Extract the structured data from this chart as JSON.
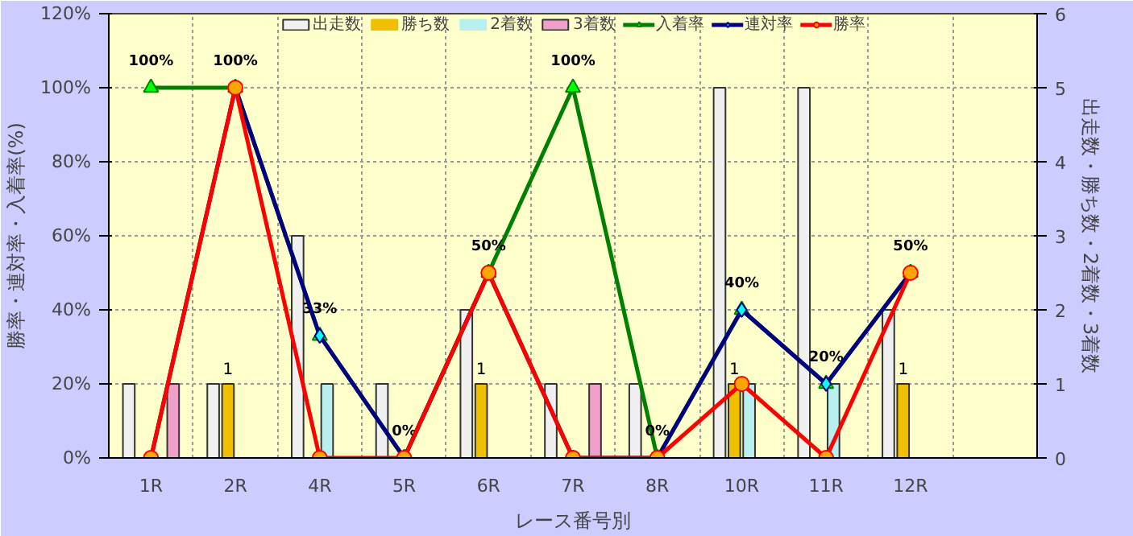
{
  "chart_data": {
    "type": "bar",
    "xlabel": "レース番号別",
    "ylabel": "勝率・連対率・入着率(%)",
    "y2label": "出走数・勝ち数・2着数・3着数",
    "categories": [
      "1R",
      "2R",
      "4R",
      "5R",
      "6R",
      "7R",
      "8R",
      "10R",
      "11R",
      "12R",
      null
    ],
    "series": [
      {
        "name": "出走数",
        "axis": "y2",
        "color": "#f0f0f0",
        "values": [
          1,
          1,
          3,
          1,
          2,
          1,
          1,
          5,
          5,
          2,
          null
        ]
      },
      {
        "name": "勝ち数",
        "axis": "y2",
        "color": "#f0c000",
        "values": [
          0,
          1,
          0,
          0,
          1,
          0,
          0,
          1,
          0,
          1,
          null
        ],
        "value_labels": [
          null,
          "1",
          null,
          null,
          "1",
          null,
          null,
          "1",
          null,
          "1",
          null
        ]
      },
      {
        "name": "2着数",
        "axis": "y2",
        "color": "#b8f0f0",
        "values": [
          0,
          0,
          1,
          0,
          0,
          0,
          0,
          1,
          1,
          0,
          null
        ]
      },
      {
        "name": "3着数",
        "axis": "y2",
        "color": "#f0a0c8",
        "values": [
          1,
          0,
          0,
          0,
          0,
          1,
          0,
          0,
          0,
          0,
          null
        ]
      },
      {
        "name": "入着率",
        "type": "line",
        "marker": "triangle",
        "color": "#008000",
        "values": [
          100,
          100,
          33,
          0,
          50,
          100,
          0,
          40,
          20,
          50,
          null
        ],
        "value_labels": [
          "100%",
          "100%",
          "33%",
          "0%",
          "50%",
          "100%",
          "0%",
          "40%",
          "20%",
          "50%",
          null
        ]
      },
      {
        "name": "連対率",
        "type": "line",
        "marker": "diamond",
        "color": "#000080",
        "values": [
          0,
          100,
          33,
          0,
          50,
          0,
          0,
          40,
          20,
          50,
          null
        ]
      },
      {
        "name": "勝率",
        "type": "line",
        "marker": "circle",
        "color": "#ff0000",
        "values": [
          0,
          100,
          0,
          0,
          50,
          0,
          0,
          20,
          0,
          50,
          null
        ]
      }
    ],
    "ylim": [
      0,
      120
    ],
    "yticks": [
      {
        "value": 0,
        "label": "0%"
      },
      {
        "value": 20,
        "label": "20%"
      },
      {
        "value": 40,
        "label": "40%"
      },
      {
        "value": 60,
        "label": "60%"
      },
      {
        "value": 80,
        "label": "80%"
      },
      {
        "value": 100,
        "label": "100%"
      },
      {
        "value": 120,
        "label": "120%"
      }
    ],
    "y2lim": [
      0,
      6
    ],
    "y2ticks": [
      0,
      1,
      2,
      3,
      4,
      5,
      6
    ],
    "grid": true,
    "legend": "top"
  }
}
